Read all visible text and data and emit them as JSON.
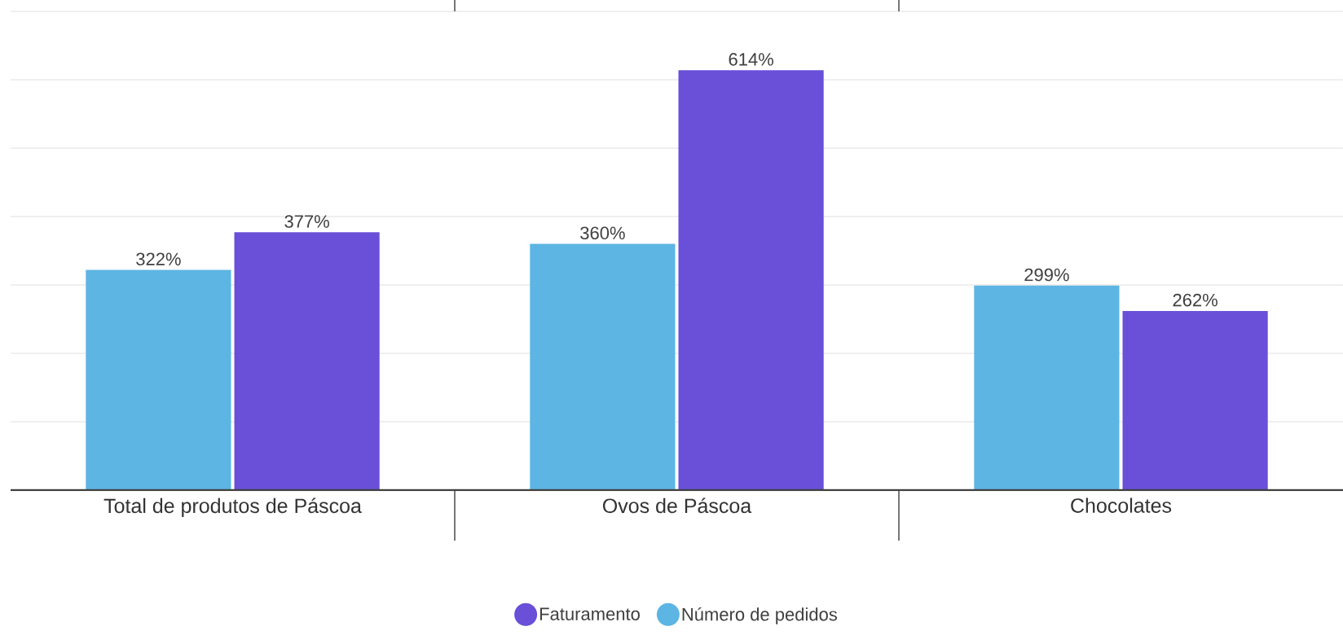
{
  "chart_data": {
    "type": "bar",
    "categories": [
      "Total de produtos de Páscoa",
      "Ovos de Páscoa",
      "Chocolates"
    ],
    "series": [
      {
        "name": "Número de pedidos",
        "color": "#5db5e3",
        "values": [
          322,
          360,
          299
        ],
        "value_labels": [
          "322%",
          "360%",
          "299%"
        ]
      },
      {
        "name": "Faturamento",
        "color": "#6a4fd8",
        "values": [
          377,
          614,
          262
        ],
        "value_labels": [
          "377%",
          "614%",
          "262%"
        ]
      }
    ],
    "ylim": [
      0,
      700
    ],
    "yticks": [
      {
        "value": 0,
        "label": null
      },
      {
        "value": 100,
        "label": null
      },
      {
        "value": 200,
        "label": null
      },
      {
        "value": 300,
        "label": null
      },
      {
        "value": 400,
        "label": null
      },
      {
        "value": 500,
        "label": null
      },
      {
        "value": 600,
        "label": null
      },
      {
        "value": 700,
        "label": null
      }
    ],
    "grid": "y",
    "legend": "bottom",
    "tick_labels": "x"
  }
}
